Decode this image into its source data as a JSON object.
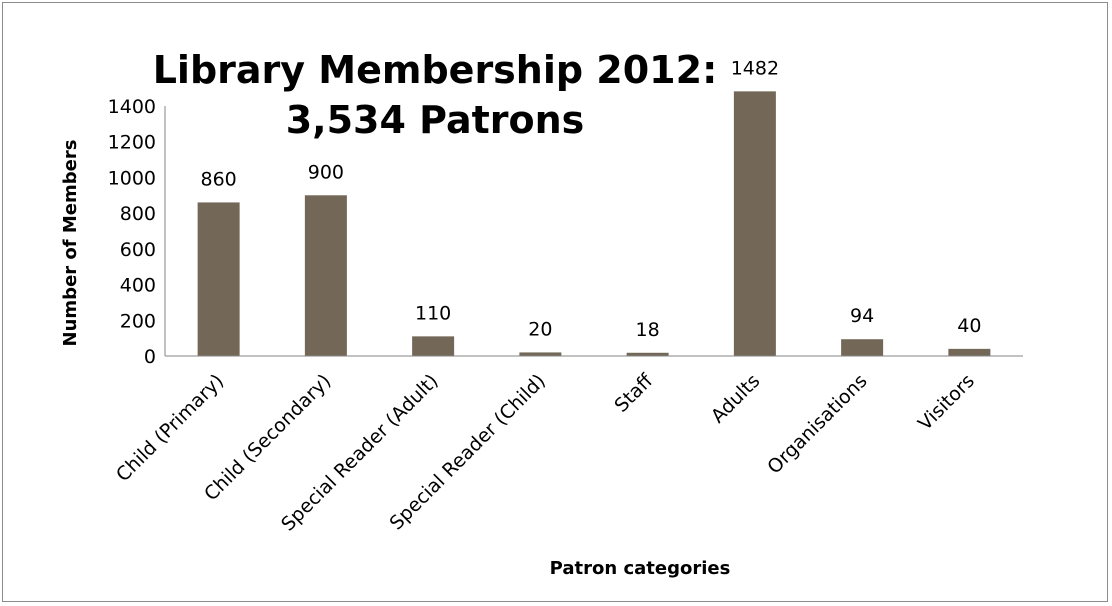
{
  "chart_data": {
    "type": "bar",
    "title_lines": [
      "Library Membership 2012:",
      "3,534 Patrons"
    ],
    "xlabel": "Patron categories",
    "ylabel": "Number of Members",
    "categories": [
      "Child (Primary)",
      "Child (Secondary)",
      "Special Reader (Adult)",
      "Special Reader (Child)",
      "Staff",
      "Adults",
      "Organisations",
      "Visitors"
    ],
    "values": [
      860,
      900,
      110,
      20,
      18,
      1482,
      94,
      40
    ],
    "ylim": [
      0,
      1400
    ],
    "yticks": [
      0,
      200,
      400,
      600,
      800,
      1000,
      1200,
      1400
    ],
    "grid": false,
    "legend": "none",
    "bar_color": "#736857",
    "axis_color": "#868686"
  }
}
